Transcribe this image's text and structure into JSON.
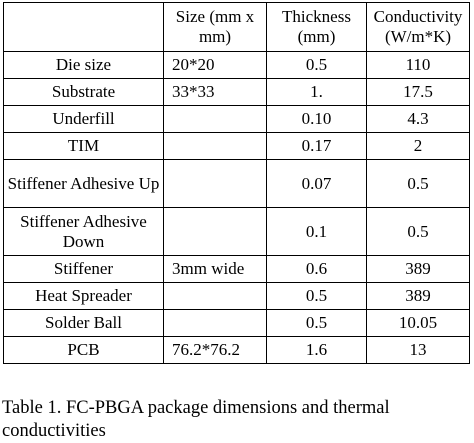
{
  "table": {
    "headers": [
      "",
      "Size (mm x mm)",
      "Thickness (mm)",
      "Conductivity (W/m*K)"
    ],
    "rows": [
      {
        "name": "Die size",
        "size": "20*20",
        "thickness": "0.5",
        "conductivity": "110"
      },
      {
        "name": "Substrate",
        "size": "33*33",
        "thickness": "1.",
        "conductivity": "17.5"
      },
      {
        "name": "Underfill",
        "size": "",
        "thickness": "0.10",
        "conductivity": "4.3"
      },
      {
        "name": "TIM",
        "size": "",
        "thickness": "0.17",
        "conductivity": "2"
      },
      {
        "name": "Stiffener Adhesive Up",
        "size": "",
        "thickness": "0.07",
        "conductivity": "0.5"
      },
      {
        "name": "Stiffener Adhesive Down",
        "size": "",
        "thickness": "0.1",
        "conductivity": "0.5"
      },
      {
        "name": "Stiffener",
        "size": "3mm wide",
        "thickness": "0.6",
        "conductivity": "389"
      },
      {
        "name": "Heat Spreader",
        "size": "",
        "thickness": "0.5",
        "conductivity": "389"
      },
      {
        "name": "Solder Ball",
        "size": "",
        "thickness": "0.5",
        "conductivity": "10.05"
      },
      {
        "name": "PCB",
        "size": "76.2*76.2",
        "thickness": "1.6",
        "conductivity": "13"
      }
    ]
  },
  "caption": "Table 1. FC-PBGA package dimensions and thermal conductivities"
}
